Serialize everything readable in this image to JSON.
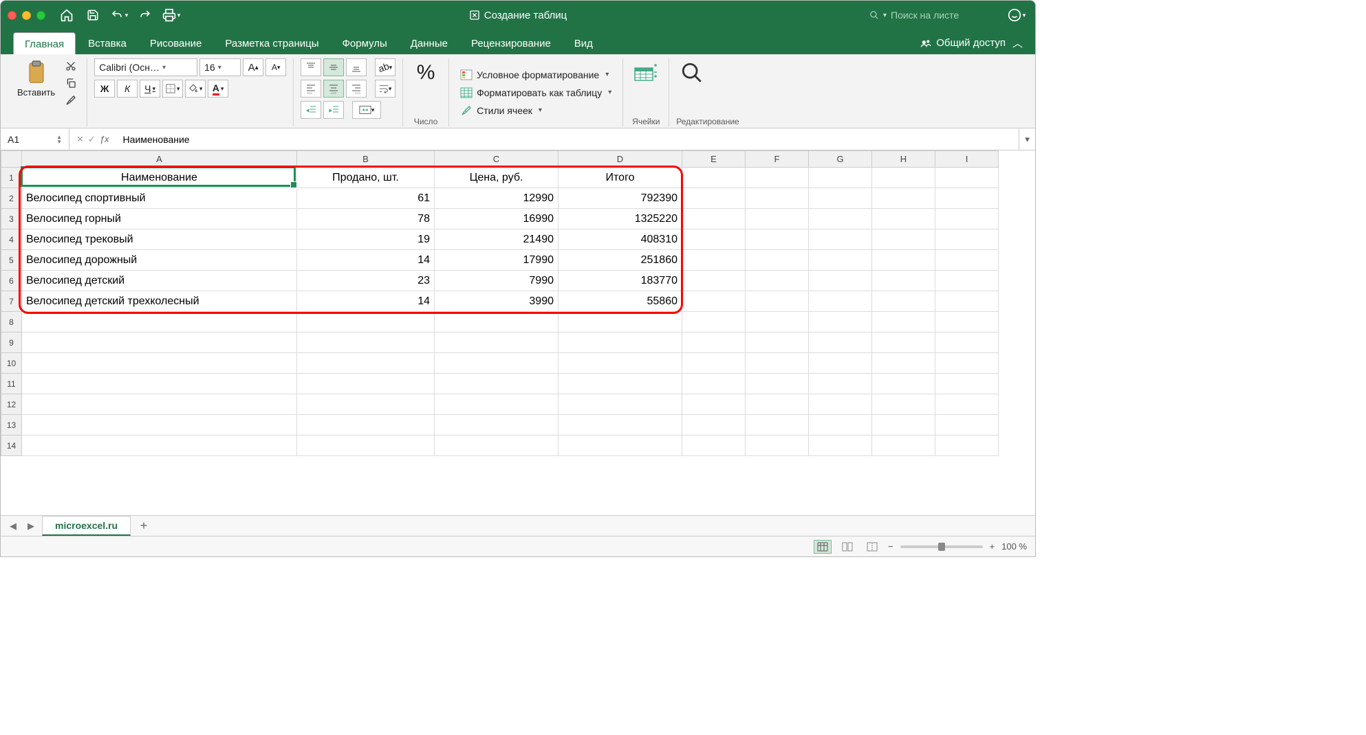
{
  "window": {
    "title": "Создание таблиц"
  },
  "search": {
    "placeholder": "Поиск на листе"
  },
  "tabs": {
    "items": [
      "Главная",
      "Вставка",
      "Рисование",
      "Разметка страницы",
      "Формулы",
      "Данные",
      "Рецензирование",
      "Вид"
    ],
    "active": 0,
    "share": "Общий доступ"
  },
  "ribbon": {
    "paste": "Вставить",
    "font_name": "Calibri (Осн…",
    "font_size": "16",
    "bold": "Ж",
    "italic": "К",
    "underline": "Ч",
    "number_group": "Число",
    "cond_format": "Условное форматирование",
    "format_table": "Форматировать как таблицу",
    "cell_styles": "Стили ячеек",
    "cells_group": "Ячейки",
    "editing_group": "Редактирование"
  },
  "formula_bar": {
    "cell_ref": "A1",
    "formula": "Наименование"
  },
  "sheet": {
    "columns": [
      "A",
      "B",
      "C",
      "D",
      "E",
      "F",
      "G",
      "H",
      "I"
    ],
    "col_widths": {
      "A": 400,
      "B": 200,
      "C": 180,
      "D": 180,
      "rest": 92
    },
    "header_row": [
      "Наименование",
      "Продано, шт.",
      "Цена, руб.",
      "Итого"
    ],
    "data_rows": [
      [
        "Велосипед спортивный",
        61,
        12990,
        792390
      ],
      [
        "Велосипед горный",
        78,
        16990,
        1325220
      ],
      [
        "Велосипед трековый",
        19,
        21490,
        408310
      ],
      [
        "Велосипед дорожный",
        14,
        17990,
        251860
      ],
      [
        "Велосипед детский",
        23,
        7990,
        183770
      ],
      [
        "Велосипед детский трехколесный",
        14,
        3990,
        55860
      ]
    ],
    "total_rows": 14,
    "selection": {
      "cell": "A1"
    },
    "highlight_box": {
      "top_row": 1,
      "bottom_row": 7,
      "left_col": "A",
      "right_col": "D",
      "color": "#ff0000"
    }
  },
  "sheet_tabs": {
    "active": "microexcel.ru"
  },
  "statusbar": {
    "zoom": "100 %"
  },
  "colors": {
    "excel_green": "#217346",
    "selection": "#1f8e56",
    "grid_line": "#dcdcdc",
    "header_bg": "#f0f0f0"
  }
}
